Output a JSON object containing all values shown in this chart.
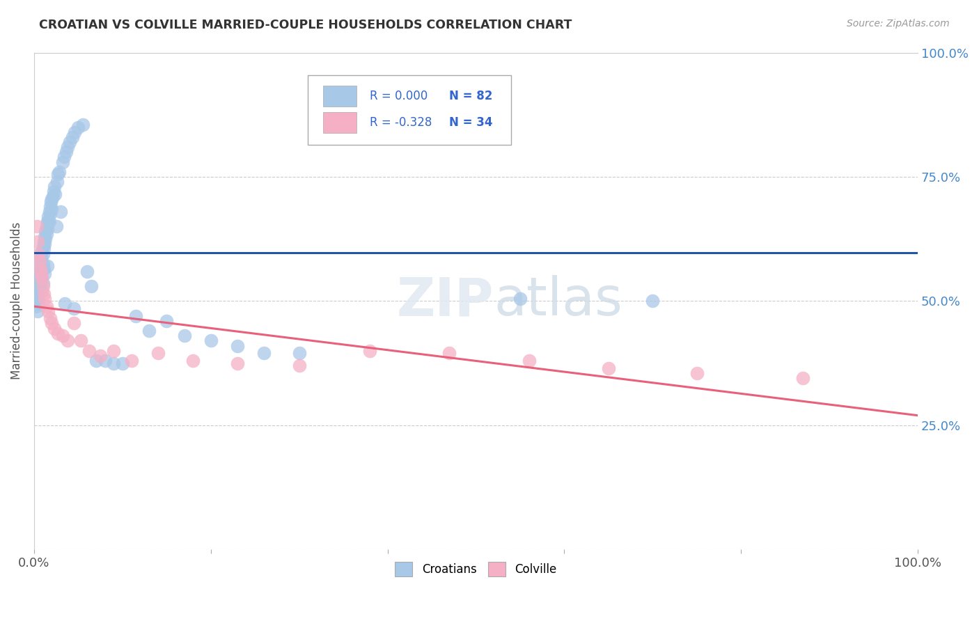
{
  "title": "CROATIAN VS COLVILLE MARRIED-COUPLE HOUSEHOLDS CORRELATION CHART",
  "source": "Source: ZipAtlas.com",
  "ylabel": "Married-couple Households",
  "xlim": [
    0,
    1.0
  ],
  "ylim": [
    0,
    1.0
  ],
  "croatian_R": 0.0,
  "croatian_N": 82,
  "colville_R": -0.328,
  "colville_N": 34,
  "croatian_color": "#a8c8e8",
  "colville_color": "#f5b0c5",
  "croatian_line_color": "#2255aa",
  "colville_line_color": "#e8607a",
  "watermark": "ZIPatlas",
  "background_color": "#ffffff",
  "croatian_x": [
    0.001,
    0.002,
    0.002,
    0.003,
    0.003,
    0.004,
    0.004,
    0.005,
    0.005,
    0.005,
    0.006,
    0.006,
    0.007,
    0.007,
    0.007,
    0.008,
    0.008,
    0.008,
    0.009,
    0.009,
    0.01,
    0.01,
    0.01,
    0.01,
    0.011,
    0.011,
    0.011,
    0.012,
    0.012,
    0.012,
    0.013,
    0.013,
    0.014,
    0.014,
    0.015,
    0.015,
    0.015,
    0.016,
    0.016,
    0.017,
    0.017,
    0.018,
    0.018,
    0.019,
    0.02,
    0.02,
    0.021,
    0.022,
    0.023,
    0.024,
    0.025,
    0.026,
    0.027,
    0.028,
    0.03,
    0.032,
    0.034,
    0.036,
    0.038,
    0.04,
    0.043,
    0.046,
    0.05,
    0.055,
    0.06,
    0.065,
    0.07,
    0.08,
    0.09,
    0.1,
    0.115,
    0.13,
    0.15,
    0.17,
    0.2,
    0.23,
    0.26,
    0.3,
    0.55,
    0.7,
    0.035,
    0.045
  ],
  "croatian_y": [
    0.51,
    0.49,
    0.53,
    0.5,
    0.52,
    0.48,
    0.54,
    0.505,
    0.495,
    0.515,
    0.56,
    0.545,
    0.57,
    0.555,
    0.58,
    0.55,
    0.59,
    0.54,
    0.6,
    0.52,
    0.61,
    0.595,
    0.575,
    0.535,
    0.62,
    0.605,
    0.565,
    0.63,
    0.615,
    0.555,
    0.64,
    0.625,
    0.65,
    0.635,
    0.66,
    0.645,
    0.57,
    0.67,
    0.66,
    0.68,
    0.66,
    0.69,
    0.675,
    0.7,
    0.705,
    0.685,
    0.71,
    0.72,
    0.73,
    0.715,
    0.65,
    0.74,
    0.755,
    0.76,
    0.68,
    0.78,
    0.79,
    0.8,
    0.81,
    0.82,
    0.83,
    0.84,
    0.85,
    0.855,
    0.56,
    0.53,
    0.38,
    0.38,
    0.375,
    0.375,
    0.47,
    0.44,
    0.46,
    0.43,
    0.42,
    0.41,
    0.395,
    0.395,
    0.505,
    0.5,
    0.495,
    0.485
  ],
  "colville_x": [
    0.003,
    0.004,
    0.005,
    0.006,
    0.007,
    0.008,
    0.009,
    0.01,
    0.011,
    0.012,
    0.014,
    0.016,
    0.018,
    0.02,
    0.023,
    0.027,
    0.032,
    0.038,
    0.045,
    0.053,
    0.062,
    0.075,
    0.09,
    0.11,
    0.14,
    0.18,
    0.23,
    0.3,
    0.38,
    0.47,
    0.56,
    0.65,
    0.75,
    0.87
  ],
  "colville_y": [
    0.65,
    0.62,
    0.595,
    0.58,
    0.565,
    0.555,
    0.545,
    0.53,
    0.515,
    0.505,
    0.49,
    0.48,
    0.465,
    0.455,
    0.445,
    0.435,
    0.43,
    0.42,
    0.455,
    0.42,
    0.4,
    0.39,
    0.4,
    0.38,
    0.395,
    0.38,
    0.375,
    0.37,
    0.4,
    0.395,
    0.38,
    0.365,
    0.355,
    0.345
  ]
}
